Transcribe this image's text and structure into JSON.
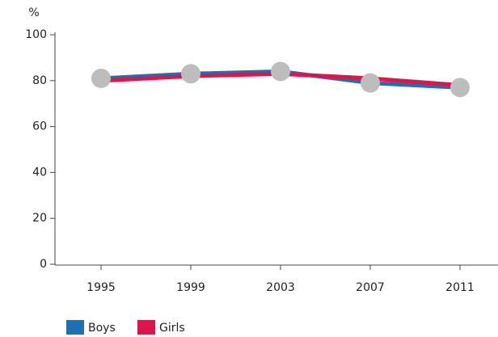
{
  "chart_data": {
    "type": "line",
    "y_label": "%",
    "categories": [
      "1995",
      "1999",
      "2003",
      "2007",
      "2011"
    ],
    "series": [
      {
        "name": "Boys",
        "color": "#1f6fb5",
        "values": [
          81,
          83,
          84,
          79,
          77
        ]
      },
      {
        "name": "Girls",
        "color": "#e0144c",
        "values": [
          80,
          82,
          83,
          81,
          78
        ]
      }
    ],
    "marker_color": "#bdbdbd",
    "ylim": [
      0,
      100
    ],
    "yticks": [
      0,
      20,
      40,
      60,
      80,
      100
    ],
    "grid": false
  }
}
